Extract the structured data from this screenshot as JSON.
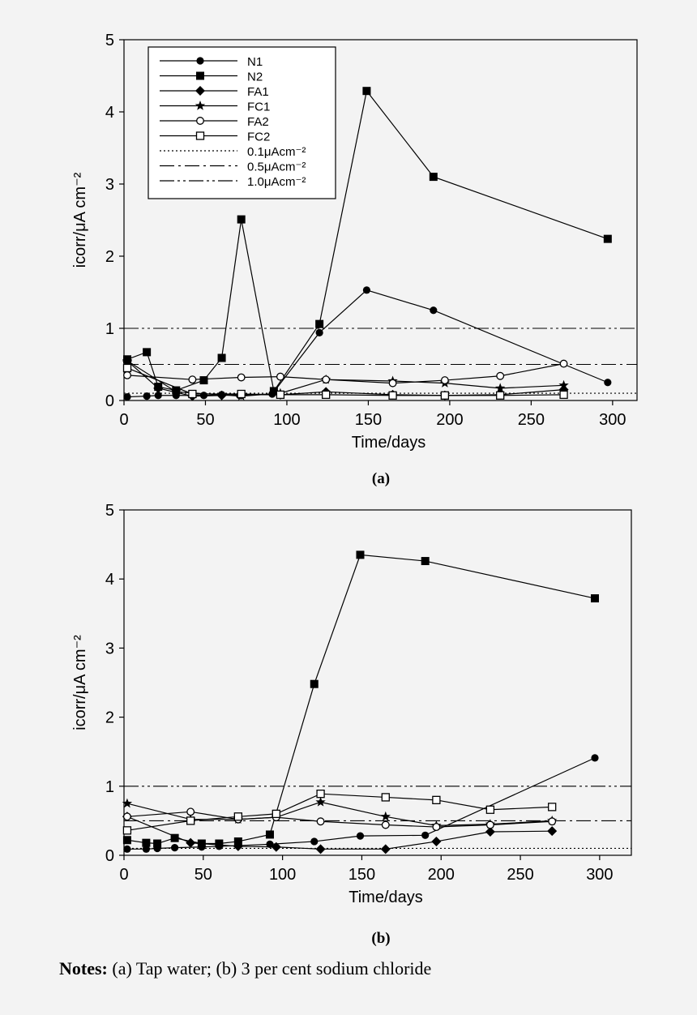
{
  "notes": {
    "label": "Notes:",
    "text": "(a) Tap water; (b) 3 per cent sodium chloride"
  },
  "chart_data": [
    {
      "id": "a",
      "type": "line",
      "panel_label": "(a)",
      "xlabel": "Time/days",
      "ylabel": "icorr/μA cm⁻²",
      "xlim": [
        0,
        315
      ],
      "ylim": [
        0,
        5
      ],
      "xticks": [
        0,
        50,
        100,
        150,
        200,
        250,
        300
      ],
      "yticks": [
        0,
        1,
        2,
        3,
        4,
        5
      ],
      "legend_position": "top-left",
      "series": [
        {
          "name": "N1",
          "marker": "circle-filled",
          "points": [
            [
              2,
              0.05
            ],
            [
              14,
              0.06
            ],
            [
              21,
              0.07
            ],
            [
              32,
              0.07
            ],
            [
              42,
              0.07
            ],
            [
              49,
              0.07
            ],
            [
              60,
              0.08
            ],
            [
              71,
              0.07
            ],
            [
              91,
              0.09
            ],
            [
              120,
              0.94
            ],
            [
              149,
              1.53
            ],
            [
              190,
              1.25
            ],
            [
              297,
              0.25
            ]
          ]
        },
        {
          "name": "N2",
          "marker": "square-filled",
          "points": [
            [
              2,
              0.57
            ],
            [
              14,
              0.67
            ],
            [
              21,
              0.19
            ],
            [
              32,
              0.14
            ],
            [
              49,
              0.28
            ],
            [
              60,
              0.59
            ],
            [
              72,
              2.51
            ],
            [
              92,
              0.13
            ],
            [
              120,
              1.06
            ],
            [
              149,
              4.29
            ],
            [
              190,
              3.1
            ],
            [
              297,
              2.24
            ]
          ]
        },
        {
          "name": "FA1",
          "marker": "diamond-filled",
          "points": [
            [
              2,
              0.55
            ],
            [
              21,
              0.17
            ],
            [
              42,
              0.06
            ],
            [
              60,
              0.07
            ],
            [
              72,
              0.08
            ],
            [
              96,
              0.08
            ],
            [
              124,
              0.12
            ],
            [
              165,
              0.08
            ],
            [
              197,
              0.07
            ],
            [
              231,
              0.08
            ],
            [
              270,
              0.15
            ]
          ]
        },
        {
          "name": "FC1",
          "marker": "star",
          "points": [
            [
              2,
              0.55
            ],
            [
              32,
              0.12
            ],
            [
              72,
              0.06
            ],
            [
              96,
              0.1
            ],
            [
              124,
              0.29
            ],
            [
              165,
              0.27
            ],
            [
              197,
              0.24
            ],
            [
              231,
              0.17
            ],
            [
              270,
              0.21
            ]
          ]
        },
        {
          "name": "FA2",
          "marker": "circle-open",
          "points": [
            [
              2,
              0.35
            ],
            [
              42,
              0.29
            ],
            [
              72,
              0.32
            ],
            [
              96,
              0.33
            ],
            [
              124,
              0.29
            ],
            [
              165,
              0.24
            ],
            [
              197,
              0.28
            ],
            [
              231,
              0.34
            ],
            [
              270,
              0.51
            ]
          ]
        },
        {
          "name": "FC2",
          "marker": "square-open",
          "points": [
            [
              2,
              0.45
            ],
            [
              42,
              0.09
            ],
            [
              72,
              0.09
            ],
            [
              96,
              0.08
            ],
            [
              124,
              0.08
            ],
            [
              165,
              0.07
            ],
            [
              197,
              0.07
            ],
            [
              231,
              0.07
            ],
            [
              270,
              0.08
            ]
          ]
        }
      ],
      "reference_lines": [
        {
          "name": "0.1μAcm⁻²",
          "value": 0.1,
          "style": "dotted"
        },
        {
          "name": "0.5μAcm⁻²",
          "value": 0.5,
          "style": "dashdot"
        },
        {
          "name": "1.0μAcm⁻²",
          "value": 1.0,
          "style": "dashdotdot"
        }
      ]
    },
    {
      "id": "b",
      "type": "line",
      "panel_label": "(b)",
      "xlabel": "Time/days",
      "ylabel": "icorr/μA cm⁻²",
      "xlim": [
        0,
        320
      ],
      "ylim": [
        0,
        5
      ],
      "xticks": [
        0,
        50,
        100,
        150,
        200,
        250,
        300
      ],
      "yticks": [
        0,
        1,
        2,
        3,
        4,
        5
      ],
      "legend_position": "none",
      "series": [
        {
          "name": "N1",
          "marker": "circle-filled",
          "points": [
            [
              2,
              0.09
            ],
            [
              14,
              0.09
            ],
            [
              21,
              0.1
            ],
            [
              32,
              0.11
            ],
            [
              49,
              0.12
            ],
            [
              60,
              0.13
            ],
            [
              72,
              0.14
            ],
            [
              92,
              0.16
            ],
            [
              120,
              0.2
            ],
            [
              149,
              0.28
            ],
            [
              190,
              0.29
            ],
            [
              297,
              1.41
            ]
          ]
        },
        {
          "name": "N2",
          "marker": "square-filled",
          "points": [
            [
              2,
              0.22
            ],
            [
              14,
              0.18
            ],
            [
              21,
              0.17
            ],
            [
              32,
              0.25
            ],
            [
              49,
              0.17
            ],
            [
              60,
              0.17
            ],
            [
              72,
              0.2
            ],
            [
              92,
              0.3
            ],
            [
              120,
              2.48
            ],
            [
              149,
              4.35
            ],
            [
              190,
              4.26
            ],
            [
              297,
              3.72
            ]
          ]
        },
        {
          "name": "FA1",
          "marker": "diamond-filled",
          "points": [
            [
              2,
              0.56
            ],
            [
              42,
              0.18
            ],
            [
              72,
              0.13
            ],
            [
              96,
              0.12
            ],
            [
              124,
              0.09
            ],
            [
              165,
              0.09
            ],
            [
              197,
              0.2
            ],
            [
              231,
              0.34
            ],
            [
              270,
              0.35
            ]
          ]
        },
        {
          "name": "FC1",
          "marker": "star",
          "points": [
            [
              2,
              0.75
            ],
            [
              42,
              0.52
            ],
            [
              72,
              0.52
            ],
            [
              96,
              0.55
            ],
            [
              124,
              0.77
            ],
            [
              165,
              0.56
            ],
            [
              197,
              0.43
            ],
            [
              231,
              0.45
            ],
            [
              270,
              0.5
            ]
          ]
        },
        {
          "name": "FA2",
          "marker": "circle-open",
          "points": [
            [
              2,
              0.56
            ],
            [
              42,
              0.63
            ],
            [
              72,
              0.52
            ],
            [
              96,
              0.55
            ],
            [
              124,
              0.49
            ],
            [
              165,
              0.44
            ],
            [
              197,
              0.41
            ],
            [
              231,
              0.44
            ],
            [
              270,
              0.49
            ]
          ]
        },
        {
          "name": "FC2",
          "marker": "square-open",
          "points": [
            [
              2,
              0.36
            ],
            [
              42,
              0.5
            ],
            [
              72,
              0.56
            ],
            [
              96,
              0.6
            ],
            [
              124,
              0.89
            ],
            [
              165,
              0.84
            ],
            [
              197,
              0.8
            ],
            [
              231,
              0.66
            ],
            [
              270,
              0.7
            ]
          ]
        }
      ],
      "reference_lines": [
        {
          "name": "0.1μAcm⁻²",
          "value": 0.1,
          "style": "dotted"
        },
        {
          "name": "0.5μAcm⁻²",
          "value": 0.5,
          "style": "dashdot"
        },
        {
          "name": "1.0μAcm⁻²",
          "value": 1.0,
          "style": "dashdotdot"
        }
      ]
    }
  ]
}
